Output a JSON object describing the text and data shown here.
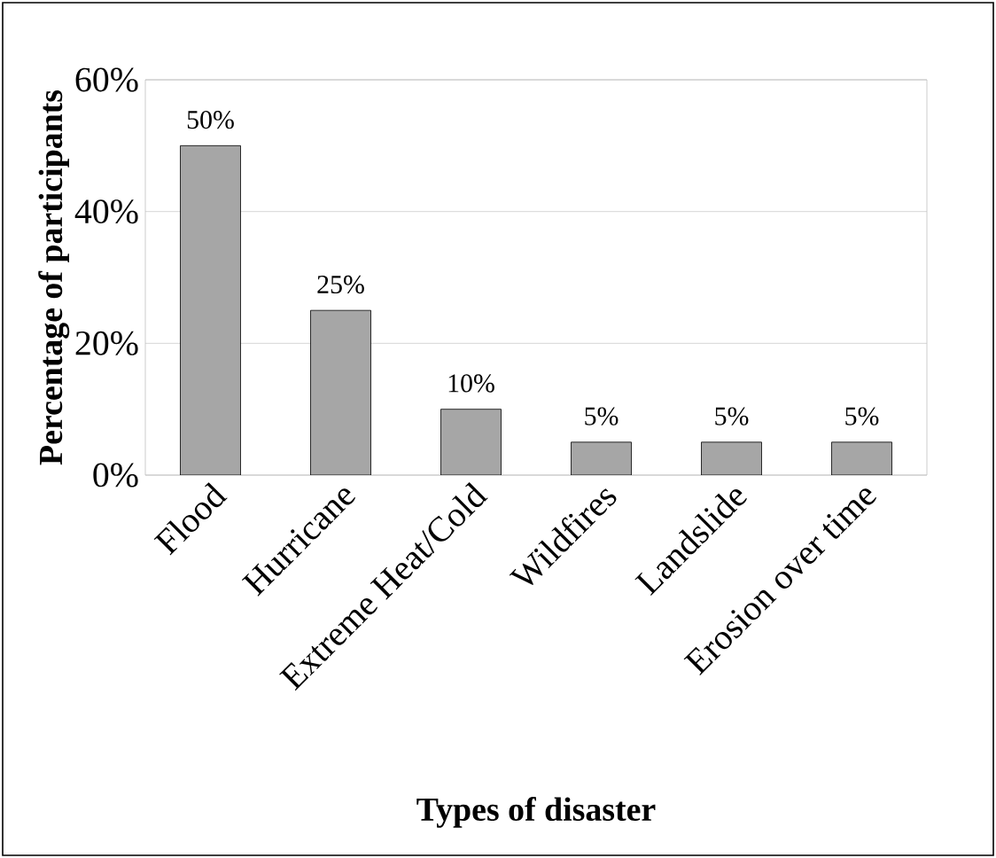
{
  "chart_data": {
    "type": "bar",
    "xlabel": "Types of disaster",
    "ylabel": "Percentage of participants",
    "categories": [
      "Flood",
      "Hurricane",
      "Extreme Heat/Cold",
      "Wildfires",
      "Landslide",
      "Erosion over time"
    ],
    "values": [
      50,
      25,
      10,
      5,
      5,
      5
    ],
    "value_labels": [
      "50%",
      "25%",
      "10%",
      "5%",
      "5%",
      "5%"
    ],
    "color": "#a6a6a6",
    "ylim": [
      0,
      60
    ],
    "yticks": [
      {
        "value": 0,
        "label": "0%"
      },
      {
        "value": 20,
        "label": "20%"
      },
      {
        "value": 40,
        "label": "40%"
      },
      {
        "value": 60,
        "label": "60%"
      }
    ],
    "grid": "y"
  }
}
